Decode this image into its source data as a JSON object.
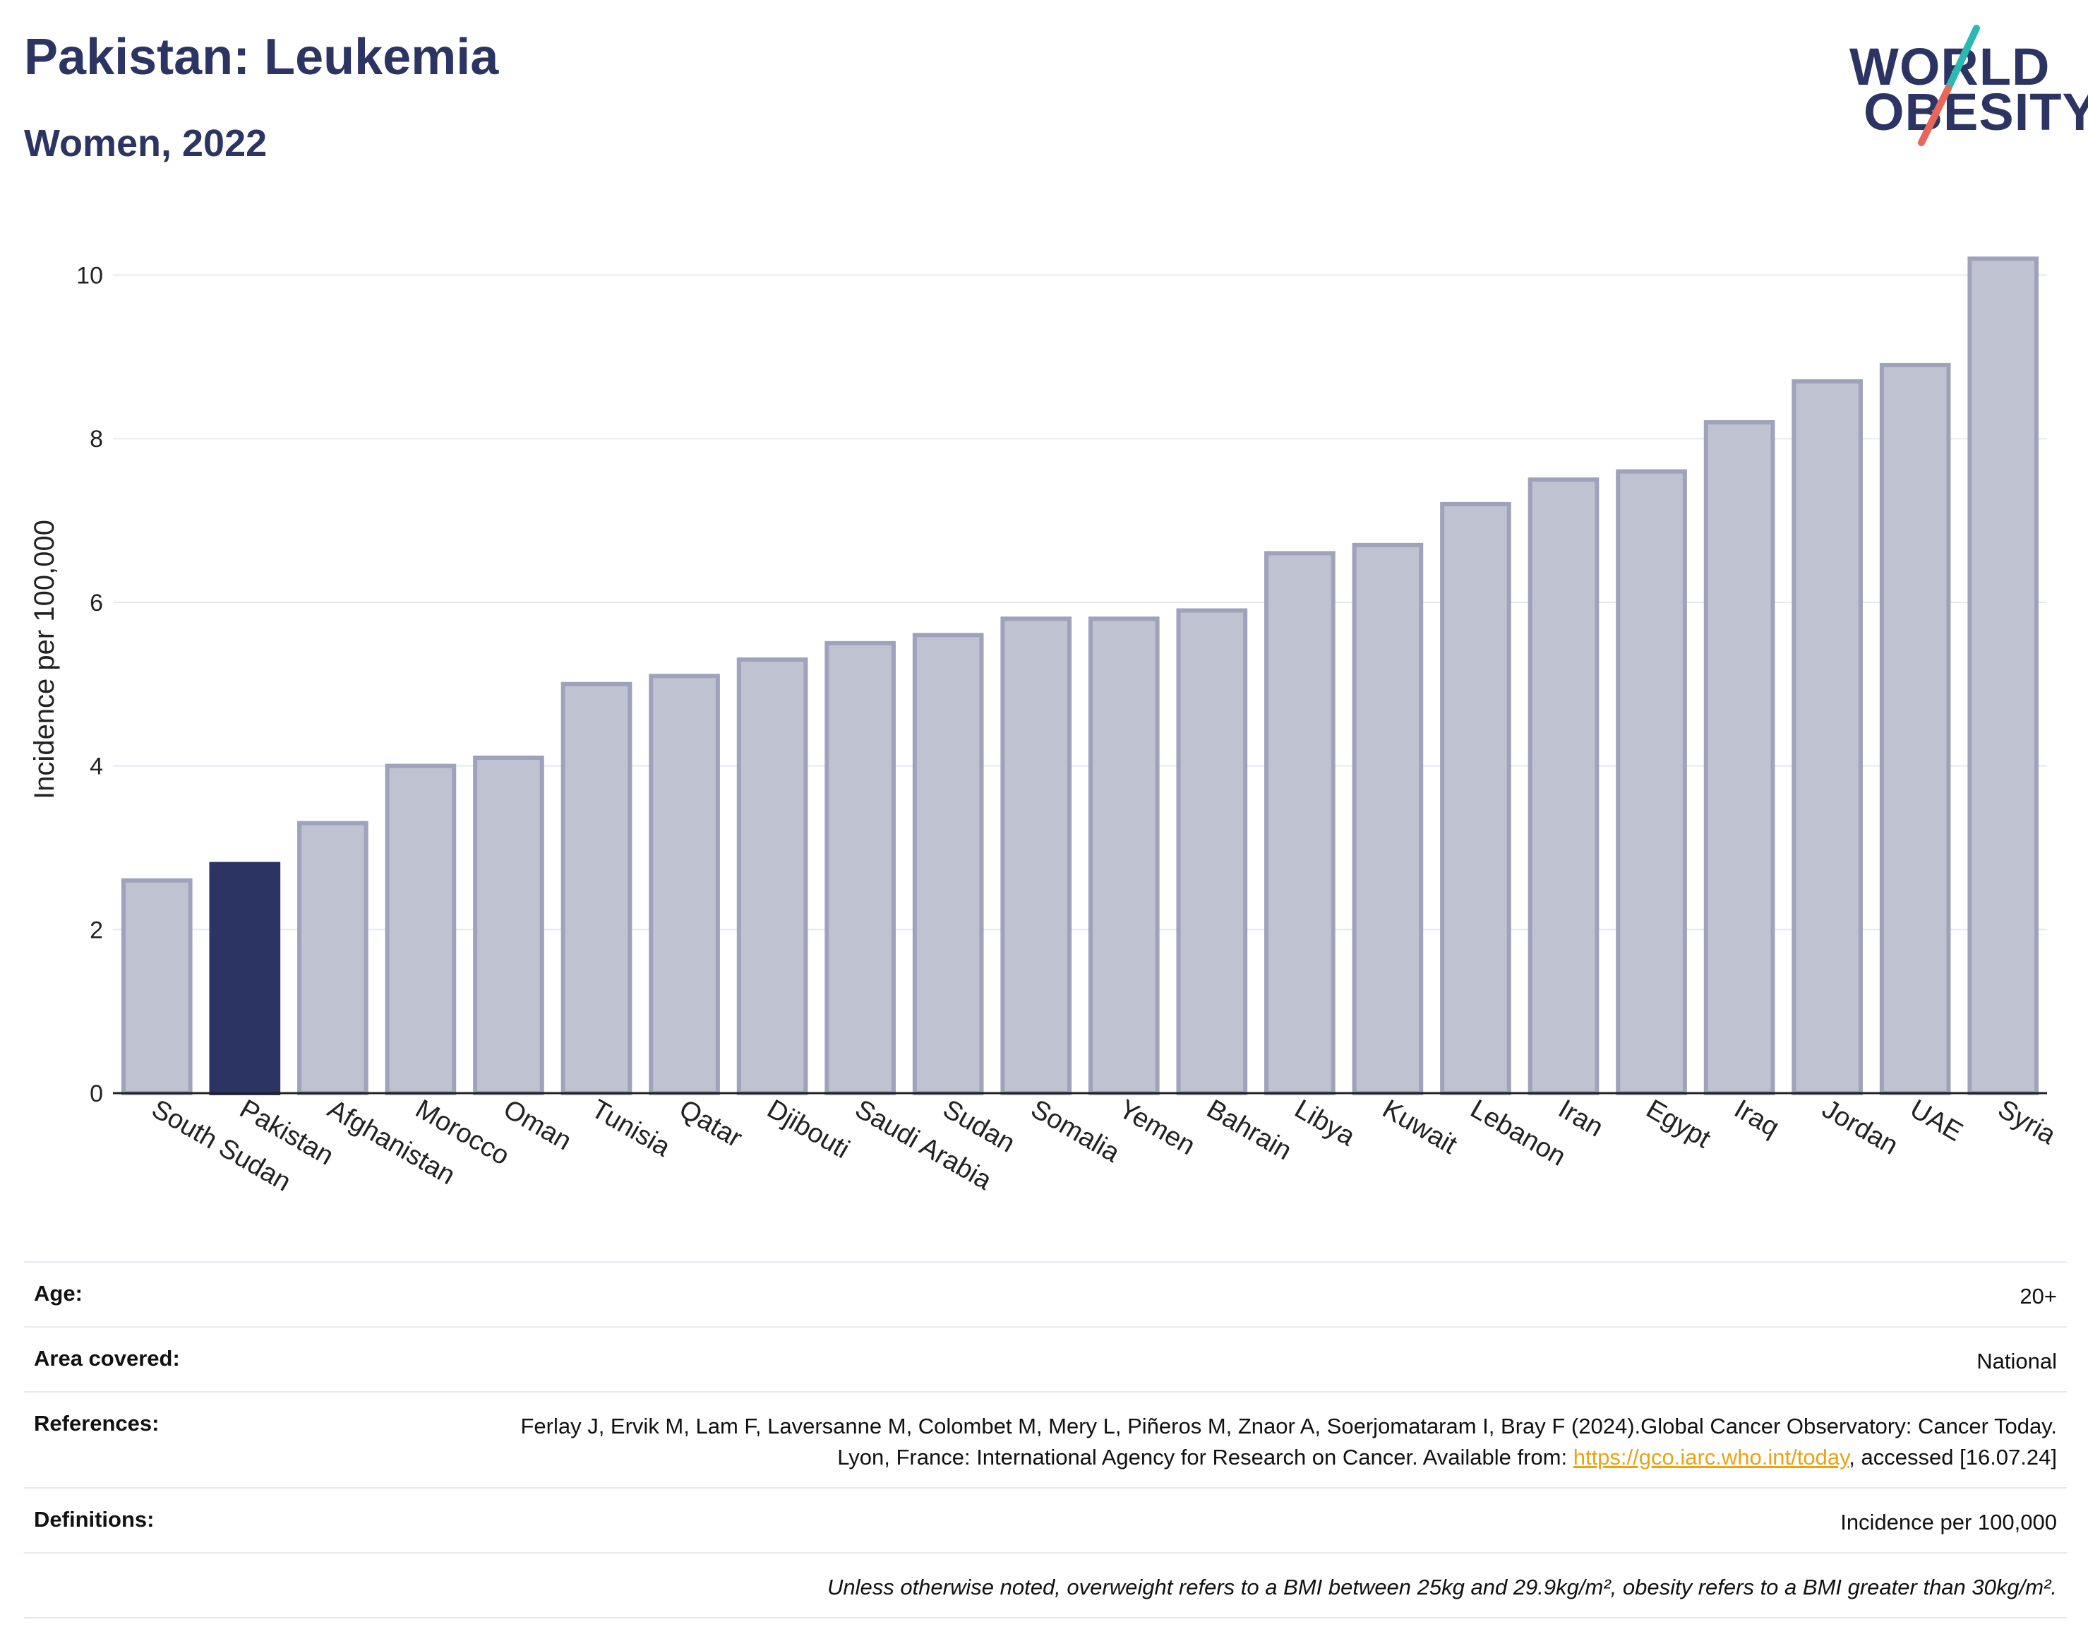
{
  "header": {
    "title": "Pakistan: Leukemia",
    "subtitle": "Women, 2022"
  },
  "logo": {
    "line1": "WORLD",
    "line2": "OBESITY",
    "accent_colors": [
      "#2ab8b0",
      "#e8675a"
    ]
  },
  "colors": {
    "highlight": "#2b3463",
    "bar": "#bfc2d0",
    "bar_border": "#9ea3bb",
    "grid": "#e6e9f3",
    "text": "#2b3463"
  },
  "chart_data": {
    "type": "bar",
    "ylabel": "Incidence per 100,000",
    "xlabel": "",
    "ylim": [
      0,
      10.6
    ],
    "yticks": [
      0,
      2,
      4,
      6,
      8,
      10
    ],
    "grid": true,
    "highlight": "Pakistan",
    "categories": [
      "South Sudan",
      "Pakistan",
      "Afghanistan",
      "Morocco",
      "Oman",
      "Tunisia",
      "Qatar",
      "Djibouti",
      "Saudi Arabia",
      "Sudan",
      "Somalia",
      "Yemen",
      "Bahrain",
      "Libya",
      "Kuwait",
      "Lebanon",
      "Iran",
      "Egypt",
      "Iraq",
      "Jordan",
      "UAE",
      "Syria"
    ],
    "values": [
      2.6,
      2.8,
      3.3,
      4.0,
      4.1,
      5.0,
      5.1,
      5.3,
      5.5,
      5.6,
      5.8,
      5.8,
      5.9,
      6.6,
      6.7,
      7.2,
      7.5,
      7.6,
      8.2,
      8.7,
      8.9,
      10.2
    ]
  },
  "meta": {
    "age_label": "Age:",
    "age_value": "20+",
    "area_label": "Area covered:",
    "area_value": "National",
    "references_label": "References:",
    "references_text_1": "Ferlay J, Ervik M, Lam F, Laversanne M, Colombet M, Mery L, Piñeros M, Znaor A, Soerjomataram I, Bray F (2024).Global Cancer Observatory: Cancer Today. Lyon, France: International Agency for Research on Cancer. Available from: ",
    "references_link": "https://gco.iarc.who.int/today",
    "references_text_2": ", accessed [16.07.24]",
    "definitions_label": "Definitions:",
    "definitions_value": "Incidence per 100,000",
    "note": "Unless otherwise noted, overweight refers to a BMI between 25kg and 29.9kg/m², obesity refers to a BMI greater than 30kg/m²."
  }
}
